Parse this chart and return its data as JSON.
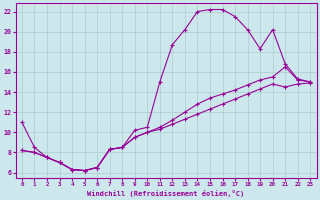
{
  "xlabel": "Windchill (Refroidissement éolien,°C)",
  "background_color": "#cce8ec",
  "line_color": "#990099",
  "grid_color": "#aacccc",
  "xlim": [
    -0.5,
    23.5
  ],
  "ylim": [
    5.5,
    22.8
  ],
  "xticks": [
    0,
    1,
    2,
    3,
    4,
    5,
    6,
    7,
    8,
    9,
    10,
    11,
    12,
    13,
    14,
    15,
    16,
    17,
    18,
    19,
    20,
    21,
    22,
    23
  ],
  "yticks": [
    6,
    8,
    10,
    12,
    14,
    16,
    18,
    20,
    22
  ],
  "curve1_x": [
    0,
    1,
    2,
    3,
    4,
    5,
    6,
    7,
    8,
    9,
    10,
    11,
    12,
    13,
    14,
    15,
    16,
    17,
    18,
    19,
    20,
    21,
    22,
    23
  ],
  "curve1_y": [
    11.0,
    8.5,
    7.5,
    7.0,
    6.3,
    6.2,
    6.5,
    8.3,
    8.5,
    10.2,
    10.5,
    15.0,
    18.7,
    20.2,
    22.0,
    22.2,
    22.2,
    21.5,
    20.2,
    18.3,
    20.2,
    16.8,
    15.3,
    15.0
  ],
  "curve2_x": [
    0,
    1,
    2,
    3,
    4,
    5,
    6,
    7,
    8,
    9,
    10,
    11,
    12,
    13,
    14,
    15,
    16,
    17,
    18,
    19,
    20,
    21,
    22,
    23
  ],
  "curve2_y": [
    8.2,
    8.0,
    7.5,
    7.0,
    6.3,
    6.2,
    6.5,
    8.3,
    8.5,
    9.5,
    10.0,
    10.5,
    11.2,
    12.0,
    12.8,
    13.4,
    13.8,
    14.2,
    14.7,
    15.2,
    15.5,
    16.5,
    15.2,
    15.0
  ],
  "curve3_x": [
    0,
    1,
    2,
    3,
    4,
    5,
    6,
    7,
    8,
    9,
    10,
    11,
    12,
    13,
    14,
    15,
    16,
    17,
    18,
    19,
    20,
    21,
    22,
    23
  ],
  "curve3_y": [
    8.2,
    8.0,
    7.5,
    7.0,
    6.3,
    6.2,
    6.5,
    8.3,
    8.5,
    9.5,
    10.0,
    10.3,
    10.8,
    11.3,
    11.8,
    12.3,
    12.8,
    13.3,
    13.8,
    14.3,
    14.8,
    14.5,
    14.8,
    14.9
  ]
}
